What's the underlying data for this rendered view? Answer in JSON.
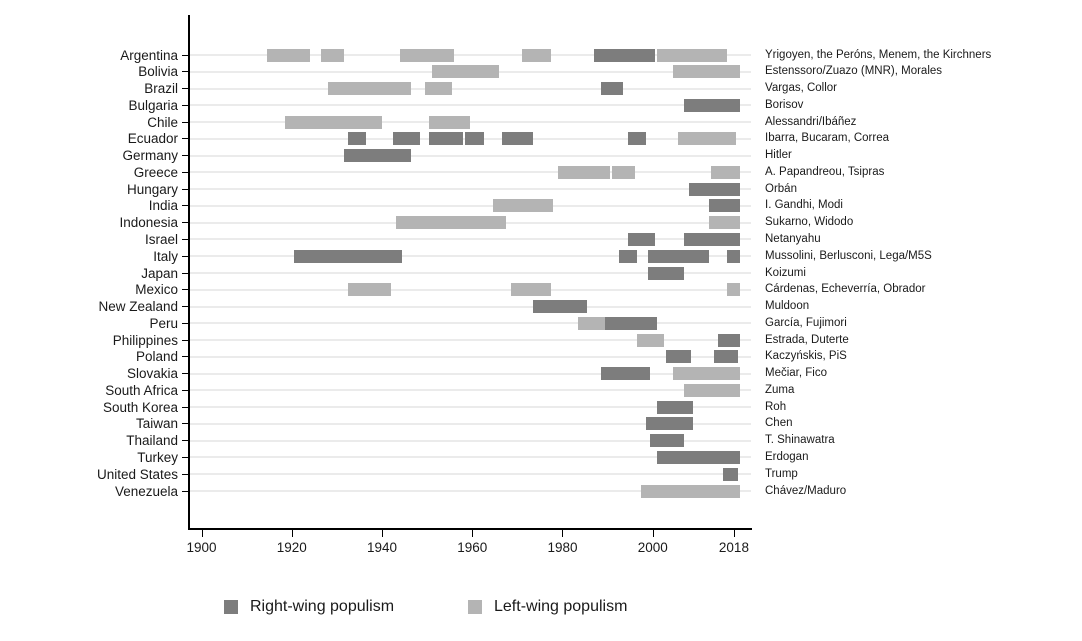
{
  "chart_data": {
    "type": "bar",
    "subtype": "timeline-gantt-populism-episodes",
    "title": "",
    "xlabel": "",
    "ylabel": "",
    "x_axis": {
      "tick_years": [
        1900,
        1920,
        1940,
        1960,
        1980,
        2000,
        2018
      ],
      "xlim": [
        1897,
        2022
      ],
      "grid": "horizontal-row-guides"
    },
    "legend": {
      "position": "bottom",
      "items": [
        {
          "key": "right",
          "label": "Right-wing populism",
          "color": "#7d7d7d"
        },
        {
          "key": "left",
          "label": "Left-wing populism",
          "color": "#b4b4b4"
        }
      ]
    },
    "countries": [
      {
        "name": "Argentina",
        "leaders": "Yrigoyen, the Peróns, Menem, the Kirchners",
        "episodes": [
          {
            "start": 1914.5,
            "end": 1924,
            "wing": "left"
          },
          {
            "start": 1926.5,
            "end": 1931.5,
            "wing": "left"
          },
          {
            "start": 1944,
            "end": 1956,
            "wing": "left"
          },
          {
            "start": 1971,
            "end": 1977.5,
            "wing": "left"
          },
          {
            "start": 1987,
            "end": 2000.5,
            "wing": "right"
          },
          {
            "start": 2001,
            "end": 2016.5,
            "wing": "left"
          }
        ]
      },
      {
        "name": "Bolivia",
        "leaders": "Estenssoro/Zuazo (MNR), Morales",
        "episodes": [
          {
            "start": 1951,
            "end": 1966,
            "wing": "left"
          },
          {
            "start": 2004.5,
            "end": 2019.3,
            "wing": "left"
          }
        ]
      },
      {
        "name": "Brazil",
        "leaders": "Vargas, Collor",
        "episodes": [
          {
            "start": 1928,
            "end": 1946.5,
            "wing": "left"
          },
          {
            "start": 1949.5,
            "end": 1955.5,
            "wing": "left"
          },
          {
            "start": 1988.5,
            "end": 1993.5,
            "wing": "right"
          }
        ]
      },
      {
        "name": "Bulgaria",
        "leaders": "Borisov",
        "episodes": [
          {
            "start": 2007,
            "end": 2019.3,
            "wing": "right"
          }
        ]
      },
      {
        "name": "Chile",
        "leaders": "Alessandri/Ibáñez",
        "episodes": [
          {
            "start": 1918.5,
            "end": 1940,
            "wing": "left"
          },
          {
            "start": 1950.5,
            "end": 1959.5,
            "wing": "left"
          }
        ]
      },
      {
        "name": "Ecuador",
        "leaders": "Ibarra, Bucaram, Correa",
        "episodes": [
          {
            "start": 1932.5,
            "end": 1936.5,
            "wing": "right"
          },
          {
            "start": 1942.5,
            "end": 1948.5,
            "wing": "right"
          },
          {
            "start": 1950.5,
            "end": 1958,
            "wing": "right"
          },
          {
            "start": 1958.5,
            "end": 1962.5,
            "wing": "right"
          },
          {
            "start": 1966.5,
            "end": 1973.5,
            "wing": "right"
          },
          {
            "start": 1994.5,
            "end": 1998.5,
            "wing": "right"
          },
          {
            "start": 2005.5,
            "end": 2018.5,
            "wing": "left"
          }
        ]
      },
      {
        "name": "Germany",
        "leaders": "Hitler",
        "episodes": [
          {
            "start": 1931.5,
            "end": 1946.5,
            "wing": "right"
          }
        ]
      },
      {
        "name": "Greece",
        "leaders": "A. Papandreou, Tsipras",
        "episodes": [
          {
            "start": 1979,
            "end": 1990.5,
            "wing": "left"
          },
          {
            "start": 1991,
            "end": 1996,
            "wing": "left"
          },
          {
            "start": 2013,
            "end": 2019.3,
            "wing": "left"
          }
        ]
      },
      {
        "name": "Hungary",
        "leaders": "Orbán",
        "episodes": [
          {
            "start": 2008,
            "end": 2019.3,
            "wing": "right"
          }
        ]
      },
      {
        "name": "India",
        "leaders": "I. Gandhi, Modi",
        "episodes": [
          {
            "start": 1964.5,
            "end": 1978,
            "wing": "left"
          },
          {
            "start": 2012.5,
            "end": 2019.3,
            "wing": "right"
          }
        ]
      },
      {
        "name": "Indonesia",
        "leaders": "Sukarno, Widodo",
        "episodes": [
          {
            "start": 1943,
            "end": 1967.5,
            "wing": "left"
          },
          {
            "start": 2012.5,
            "end": 2019.3,
            "wing": "left"
          }
        ]
      },
      {
        "name": "Israel",
        "leaders": "Netanyahu",
        "episodes": [
          {
            "start": 1994.5,
            "end": 2000.5,
            "wing": "right"
          },
          {
            "start": 2007,
            "end": 2019.3,
            "wing": "right"
          }
        ]
      },
      {
        "name": "Italy",
        "leaders": "Mussolini, Berlusconi, Lega/M5S",
        "episodes": [
          {
            "start": 1920.5,
            "end": 1944.5,
            "wing": "right"
          },
          {
            "start": 1992.5,
            "end": 1996.5,
            "wing": "right"
          },
          {
            "start": 1999,
            "end": 2012.5,
            "wing": "right"
          },
          {
            "start": 2016.5,
            "end": 2019.3,
            "wing": "right"
          }
        ]
      },
      {
        "name": "Japan",
        "leaders": "Koizumi",
        "episodes": [
          {
            "start": 1999,
            "end": 2007,
            "wing": "right"
          }
        ]
      },
      {
        "name": "Mexico",
        "leaders": "Cárdenas, Echeverría, Obrador",
        "episodes": [
          {
            "start": 1932.5,
            "end": 1942,
            "wing": "left"
          },
          {
            "start": 1968.5,
            "end": 1977.5,
            "wing": "left"
          },
          {
            "start": 2016.5,
            "end": 2019.3,
            "wing": "left"
          }
        ]
      },
      {
        "name": "New Zealand",
        "leaders": "Muldoon",
        "episodes": [
          {
            "start": 1973.5,
            "end": 1985.5,
            "wing": "right"
          }
        ]
      },
      {
        "name": "Peru",
        "leaders": "García, Fujimori",
        "episodes": [
          {
            "start": 1983.5,
            "end": 1989.5,
            "wing": "left"
          },
          {
            "start": 1989.5,
            "end": 2001,
            "wing": "right"
          }
        ]
      },
      {
        "name": "Philippines",
        "leaders": "Estrada, Duterte",
        "episodes": [
          {
            "start": 1996.5,
            "end": 2002.5,
            "wing": "left"
          },
          {
            "start": 2014.5,
            "end": 2019.3,
            "wing": "right"
          }
        ]
      },
      {
        "name": "Poland",
        "leaders": "Kaczyńskis, PiS",
        "episodes": [
          {
            "start": 2003,
            "end": 2008.5,
            "wing": "right"
          },
          {
            "start": 2013.5,
            "end": 2019,
            "wing": "right"
          }
        ]
      },
      {
        "name": "Slovakia",
        "leaders": "Mečiar, Fico",
        "episodes": [
          {
            "start": 1988.5,
            "end": 1999.5,
            "wing": "right"
          },
          {
            "start": 2004.5,
            "end": 2019.3,
            "wing": "left"
          }
        ]
      },
      {
        "name": "South Africa",
        "leaders": "Zuma",
        "episodes": [
          {
            "start": 2007,
            "end": 2019.3,
            "wing": "left"
          }
        ]
      },
      {
        "name": "South Korea",
        "leaders": "Roh",
        "episodes": [
          {
            "start": 2001,
            "end": 2009,
            "wing": "right"
          }
        ]
      },
      {
        "name": "Taiwan",
        "leaders": "Chen",
        "episodes": [
          {
            "start": 1998.5,
            "end": 2009,
            "wing": "right"
          }
        ]
      },
      {
        "name": "Thailand",
        "leaders": "T. Shinawatra",
        "episodes": [
          {
            "start": 1999.5,
            "end": 2007,
            "wing": "right"
          }
        ]
      },
      {
        "name": "Turkey",
        "leaders": "Erdogan",
        "episodes": [
          {
            "start": 2001,
            "end": 2019.3,
            "wing": "right"
          }
        ]
      },
      {
        "name": "United States",
        "leaders": "Trump",
        "episodes": [
          {
            "start": 2015.5,
            "end": 2019,
            "wing": "right"
          }
        ]
      },
      {
        "name": "Venezuela",
        "leaders": "Chávez/Maduro",
        "episodes": [
          {
            "start": 1997.5,
            "end": 2019.3,
            "wing": "left"
          }
        ]
      }
    ]
  },
  "colors": {
    "right_wing_bar": "#7d7d7d",
    "left_wing_bar": "#b4b4b4",
    "row_guide": "#ebebeb",
    "axis": "#000000",
    "text": "#1a1a1a"
  }
}
